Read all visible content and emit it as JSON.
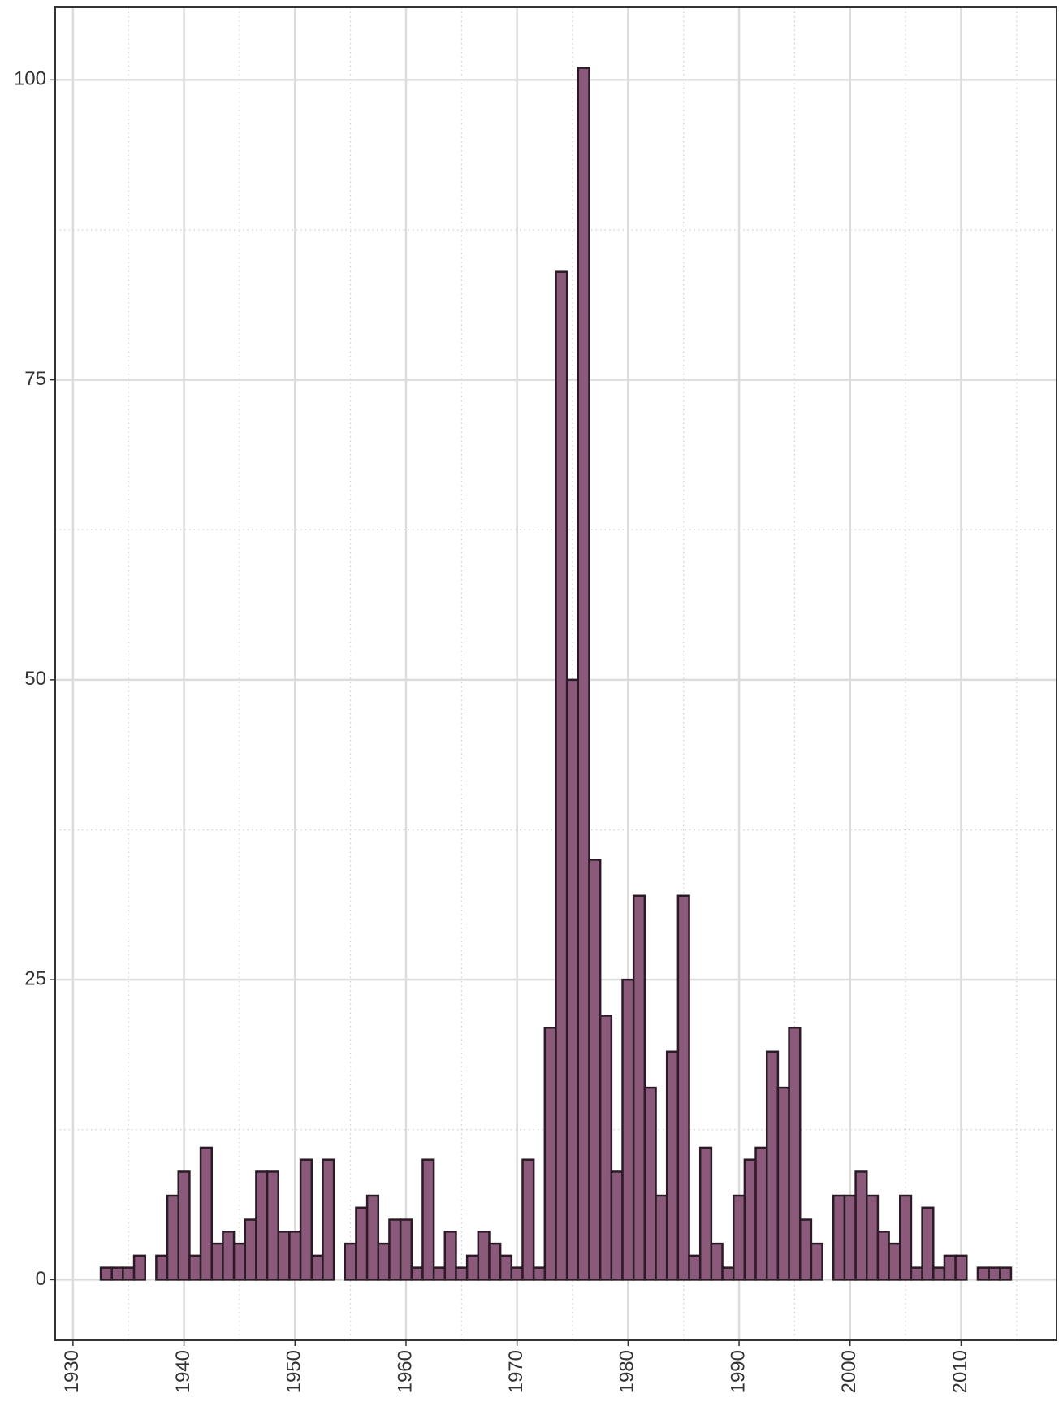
{
  "chart_data": {
    "type": "histogram",
    "bins": [
      1932.5,
      1933.5,
      1934.5,
      1935.5,
      1936.5,
      1937.5,
      1938.5,
      1939.5,
      1940.5,
      1941.5,
      1942.5,
      1943.5,
      1944.5,
      1945.5,
      1946.5,
      1947.5,
      1948.5,
      1949.5,
      1950.5,
      1951.5,
      1952.5,
      1953.5,
      1954.5,
      1955.5,
      1956.5,
      1957.5,
      1958.5,
      1959.5,
      1960.5,
      1961.5,
      1962.5,
      1963.5,
      1964.5,
      1965.5,
      1966.5,
      1967.5,
      1968.5,
      1969.5,
      1970.5,
      1971.5,
      1972.5,
      1973.5,
      1974.5,
      1975.5,
      1976.5,
      1977.5,
      1978.5,
      1979.5,
      1980.5,
      1981.5,
      1982.5,
      1983.5,
      1984.5,
      1985.5,
      1986.5,
      1987.5,
      1988.5,
      1989.5,
      1990.5,
      1991.5,
      1992.5,
      1993.5,
      1994.5,
      1995.5,
      1996.5,
      1997.5,
      1998.5,
      1999.5,
      2000.5,
      2001.5,
      2002.5,
      2003.5,
      2004.5,
      2005.5,
      2006.5,
      2007.5,
      2008.5,
      2009.5,
      2010.5,
      2011.5,
      2012.5,
      2013.5,
      2014.5
    ],
    "values": [
      1,
      1,
      1,
      2,
      0,
      2,
      7,
      9,
      2,
      11,
      3,
      4,
      3,
      5,
      9,
      9,
      4,
      4,
      10,
      2,
      10,
      0,
      3,
      6,
      7,
      3,
      5,
      5,
      1,
      10,
      1,
      4,
      1,
      2,
      4,
      3,
      2,
      1,
      10,
      1,
      21,
      84,
      50,
      101,
      35,
      22,
      9,
      25,
      32,
      16,
      7,
      19,
      32,
      2,
      11,
      3,
      1,
      7,
      10,
      11,
      19,
      16,
      21,
      5,
      3,
      0,
      7,
      7,
      9,
      7,
      4,
      3,
      7,
      1,
      6,
      1,
      2,
      2,
      0,
      1,
      1,
      1
    ],
    "color": "#8b5a7a",
    "edgecolor": "#2b1b26",
    "xlim": [
      1928.4,
      2018.6
    ],
    "xticks": [
      1930,
      1940,
      1950,
      1960,
      1970,
      1980,
      1990,
      2000,
      2010
    ],
    "ylim": [
      -5.05,
      106.05
    ],
    "yticks": [
      0,
      25,
      50,
      75,
      100
    ],
    "grid": true
  }
}
